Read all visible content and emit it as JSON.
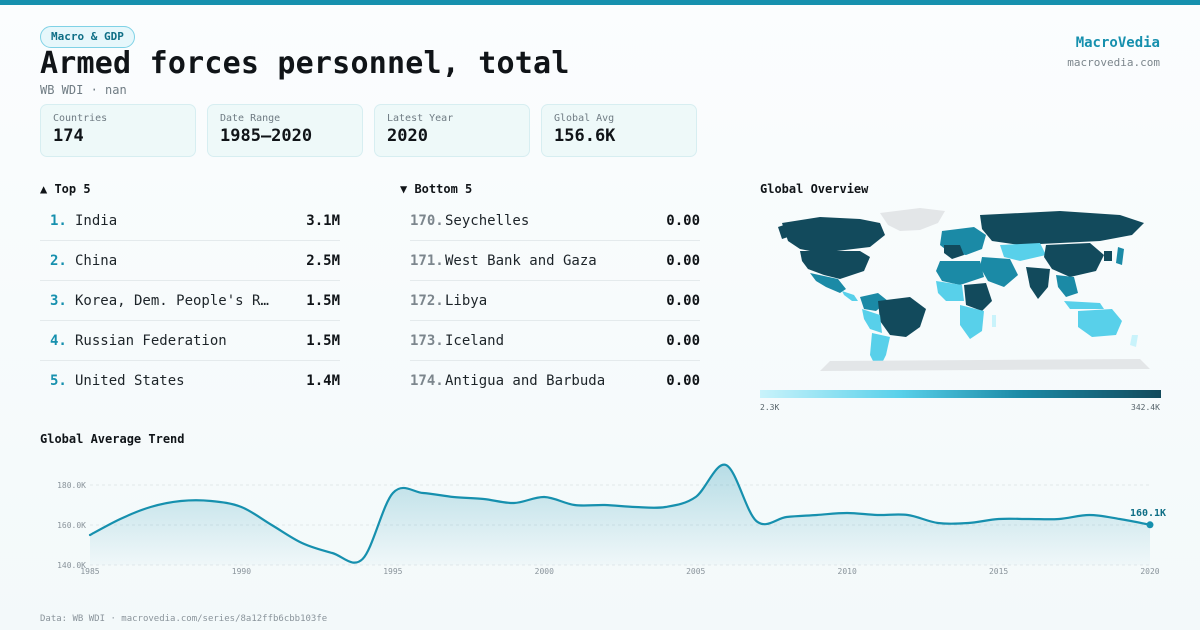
{
  "header": {
    "tag": "Macro & GDP",
    "title": "Armed forces personnel, total",
    "subtitle": "WB WDI · nan",
    "brand": "MacroVedia",
    "brand_url": "macrovedia.com"
  },
  "stats": [
    {
      "label": "Countries",
      "value": "174"
    },
    {
      "label": "Date Range",
      "value": "1985–2020"
    },
    {
      "label": "Latest Year",
      "value": "2020"
    },
    {
      "label": "Global Avg",
      "value": "156.6K"
    }
  ],
  "top5": {
    "title": "▲ Top 5",
    "items": [
      {
        "rank": "1.",
        "name": "India",
        "value": "3.1M"
      },
      {
        "rank": "2.",
        "name": "China",
        "value": "2.5M"
      },
      {
        "rank": "3.",
        "name": "Korea, Dem. People's Rep.",
        "value": "1.5M"
      },
      {
        "rank": "4.",
        "name": "Russian Federation",
        "value": "1.5M"
      },
      {
        "rank": "5.",
        "name": "United States",
        "value": "1.4M"
      }
    ]
  },
  "bottom5": {
    "title": "▼ Bottom 5",
    "items": [
      {
        "rank": "170.",
        "name": "Seychelles",
        "value": "0.00"
      },
      {
        "rank": "171.",
        "name": "West Bank and Gaza",
        "value": "0.00"
      },
      {
        "rank": "172.",
        "name": "Libya",
        "value": "0.00"
      },
      {
        "rank": "173.",
        "name": "Iceland",
        "value": "0.00"
      },
      {
        "rank": "174.",
        "name": "Antigua and Barbuda",
        "value": "0.00"
      }
    ]
  },
  "map": {
    "title": "Global Overview",
    "legend_min": "2.3K",
    "legend_max": "342.4K",
    "colors": {
      "low": "#c9f3fb",
      "mid": "#58d0ea",
      "high": "#124a5c",
      "nodata": "#e3e6e8"
    }
  },
  "trend": {
    "title": "Global Average Trend"
  },
  "footer": "Data: WB WDI · macrovedia.com/series/8a12ffb6cbb103fe",
  "chart_data": {
    "type": "area",
    "title": "Global Average Trend",
    "x": [
      1985,
      1986,
      1987,
      1988,
      1989,
      1990,
      1991,
      1992,
      1993,
      1994,
      1995,
      1996,
      1997,
      1998,
      1999,
      2000,
      2001,
      2002,
      2003,
      2004,
      2005,
      2006,
      2007,
      2008,
      2009,
      2010,
      2011,
      2012,
      2013,
      2014,
      2015,
      2016,
      2017,
      2018,
      2019,
      2020
    ],
    "y": [
      155000,
      163000,
      169000,
      172000,
      172000,
      169000,
      160000,
      151000,
      146000,
      143000,
      176000,
      176000,
      174000,
      173000,
      171000,
      174000,
      170000,
      170000,
      169000,
      169000,
      174000,
      190000,
      162000,
      164000,
      165000,
      166000,
      165000,
      165000,
      161000,
      161000,
      163000,
      163000,
      163000,
      165000,
      163000,
      160100
    ],
    "ylim": [
      140000,
      190000
    ],
    "yticks": [
      140000,
      160000,
      180000
    ],
    "ytick_labels": [
      "140.0K",
      "160.0K",
      "180.0K"
    ],
    "xticks": [
      1985,
      1990,
      1995,
      2000,
      2005,
      2010,
      2015,
      2020
    ],
    "last_label": "160.1K",
    "color": "#1690ae",
    "grid": true
  }
}
